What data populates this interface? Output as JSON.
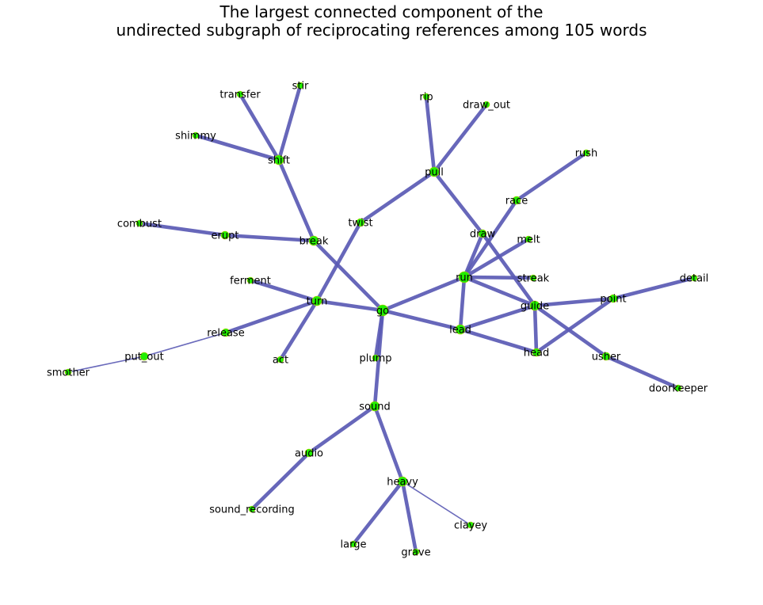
{
  "title": {
    "line1": "The largest connected component of the",
    "line2": "undirected subgraph of reciprocating references among 105 words"
  },
  "colors": {
    "edge": "#5a5ab4",
    "node": "#22ee00",
    "node_stroke": "#c8c800",
    "label": "#000000",
    "background": "#ffffff"
  },
  "graph": {
    "nodes": [
      "stir",
      "transfer",
      "shimmy",
      "shift",
      "rip",
      "draw_out",
      "pull",
      "rush",
      "race",
      "combust",
      "erupt",
      "break",
      "twist",
      "draw",
      "melt",
      "ferment",
      "run",
      "streak",
      "detail",
      "turn",
      "go",
      "guide",
      "point",
      "release",
      "lead",
      "head",
      "usher",
      "put_out",
      "act",
      "plump",
      "smother",
      "doorkeeper",
      "sound",
      "audio",
      "heavy",
      "sound_recording",
      "clayey",
      "large",
      "grave"
    ],
    "edges": [
      [
        "stir",
        "shift",
        "thick"
      ],
      [
        "transfer",
        "shift",
        "thick"
      ],
      [
        "shimmy",
        "shift",
        "thick"
      ],
      [
        "shift",
        "break",
        "thick"
      ],
      [
        "rip",
        "pull",
        "thick"
      ],
      [
        "draw_out",
        "pull",
        "thick"
      ],
      [
        "pull",
        "twist",
        "thick"
      ],
      [
        "pull",
        "draw",
        "thick"
      ],
      [
        "rush",
        "race",
        "thick"
      ],
      [
        "race",
        "run",
        "thick"
      ],
      [
        "combust",
        "erupt",
        "thick"
      ],
      [
        "erupt",
        "break",
        "thick"
      ],
      [
        "break",
        "go",
        "thick"
      ],
      [
        "twist",
        "turn",
        "thick"
      ],
      [
        "draw",
        "run",
        "thick"
      ],
      [
        "draw",
        "guide",
        "thick"
      ],
      [
        "melt",
        "run",
        "thick"
      ],
      [
        "ferment",
        "turn",
        "thick"
      ],
      [
        "run",
        "streak",
        "thick"
      ],
      [
        "run",
        "go",
        "thick"
      ],
      [
        "run",
        "lead",
        "thick"
      ],
      [
        "run",
        "guide",
        "thick"
      ],
      [
        "turn",
        "go",
        "thick"
      ],
      [
        "turn",
        "release",
        "thick"
      ],
      [
        "turn",
        "act",
        "thick"
      ],
      [
        "go",
        "lead",
        "thick"
      ],
      [
        "go",
        "plump",
        "thick"
      ],
      [
        "go",
        "sound",
        "thick"
      ],
      [
        "guide",
        "lead",
        "thick"
      ],
      [
        "guide",
        "point",
        "thick"
      ],
      [
        "guide",
        "head",
        "thick"
      ],
      [
        "guide",
        "usher",
        "thick"
      ],
      [
        "point",
        "detail",
        "thick"
      ],
      [
        "point",
        "head",
        "thick"
      ],
      [
        "lead",
        "head",
        "thick"
      ],
      [
        "usher",
        "doorkeeper",
        "thick"
      ],
      [
        "release",
        "put_out",
        "thin"
      ],
      [
        "put_out",
        "smother",
        "thin"
      ],
      [
        "sound",
        "audio",
        "thick"
      ],
      [
        "sound",
        "heavy",
        "thick"
      ],
      [
        "audio",
        "sound_recording",
        "thick"
      ],
      [
        "heavy",
        "large",
        "thick"
      ],
      [
        "heavy",
        "grave",
        "thick"
      ],
      [
        "heavy",
        "clayey",
        "thin"
      ]
    ]
  }
}
